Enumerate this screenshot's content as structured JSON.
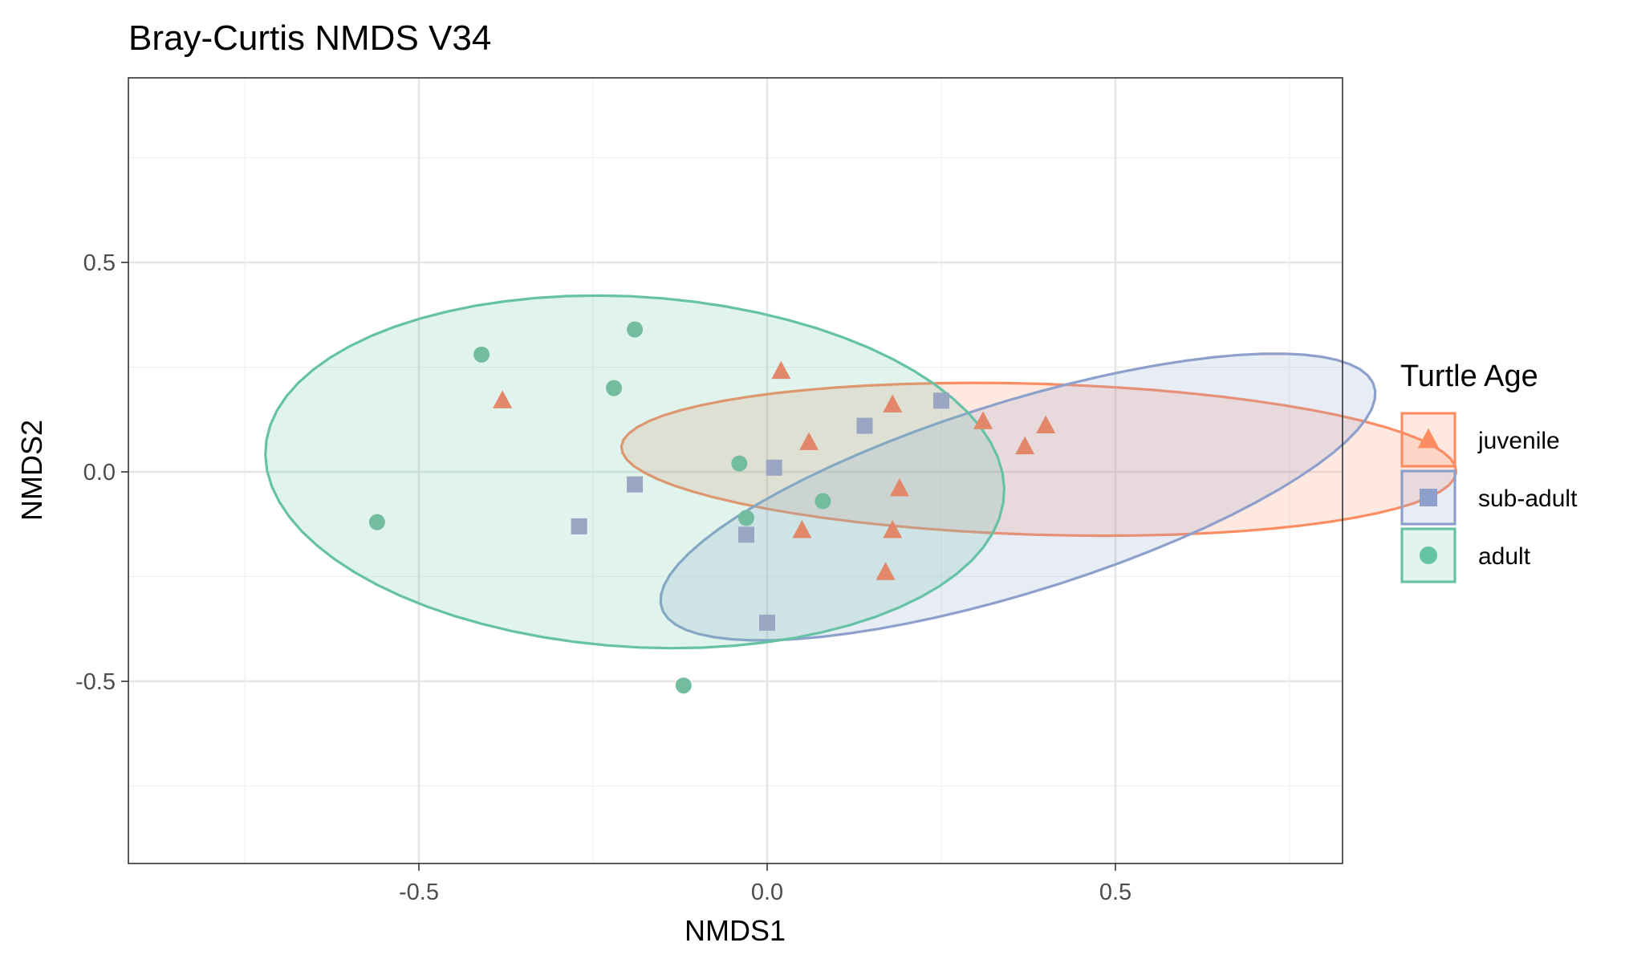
{
  "chart_data": {
    "type": "scatter",
    "title": "Bray-Curtis NMDS V34",
    "xlabel": "NMDS1",
    "ylabel": "NMDS2",
    "xlim": [
      -0.91,
      1.64
    ],
    "ylim": [
      -0.93,
      0.94
    ],
    "x_ticks": [
      -0.5,
      0.0,
      0.5
    ],
    "x_tick_labels": [
      "-0.5",
      "0.0",
      "0.5"
    ],
    "y_ticks": [
      -0.5,
      0.0,
      0.5
    ],
    "y_tick_labels": [
      "-0.5",
      "0.0",
      "0.5"
    ],
    "grid": true,
    "legend": {
      "title": "Turtle Age",
      "position": "right",
      "entries": [
        {
          "label": "juvenile",
          "color": "#FC8D62",
          "shape": "triangle"
        },
        {
          "label": "sub-adult",
          "color": "#8DA0CB",
          "shape": "square"
        },
        {
          "label": "adult",
          "color": "#66C2A5",
          "shape": "circle"
        }
      ]
    },
    "series": [
      {
        "name": "juvenile",
        "color": "#FC8D62",
        "marker_color": "#E2876A",
        "shape": "triangle",
        "points": [
          {
            "x": -0.38,
            "y": 0.17
          },
          {
            "x": 0.02,
            "y": 0.24
          },
          {
            "x": 0.06,
            "y": 0.07
          },
          {
            "x": 0.18,
            "y": 0.16
          },
          {
            "x": 0.31,
            "y": 0.12
          },
          {
            "x": 0.4,
            "y": 0.11
          },
          {
            "x": 0.37,
            "y": 0.06
          },
          {
            "x": 0.19,
            "y": -0.04
          },
          {
            "x": 0.05,
            "y": -0.14
          },
          {
            "x": 0.18,
            "y": -0.14
          },
          {
            "x": 0.17,
            "y": -0.24
          }
        ],
        "ellipse": {
          "cx": 0.39,
          "cy": 0.03,
          "rx": 1.2,
          "ry": 0.36,
          "angle_deg": -3
        }
      },
      {
        "name": "sub-adult",
        "color": "#8DA0CB",
        "marker_color": "#9AA5C4",
        "shape": "square",
        "points": [
          {
            "x": -0.27,
            "y": -0.13
          },
          {
            "x": -0.19,
            "y": -0.03
          },
          {
            "x": 0.01,
            "y": 0.01
          },
          {
            "x": -0.03,
            "y": -0.15
          },
          {
            "x": 0.14,
            "y": 0.11
          },
          {
            "x": 0.25,
            "y": 0.17
          },
          {
            "x": 0.0,
            "y": -0.36
          }
        ],
        "ellipse": {
          "cx": 0.36,
          "cy": -0.06,
          "rx": 1.16,
          "ry": 0.42,
          "angle_deg": 30
        }
      },
      {
        "name": "adult",
        "color": "#66C2A5",
        "marker_color": "#73BC9F",
        "shape": "circle",
        "points": [
          {
            "x": -0.41,
            "y": 0.28
          },
          {
            "x": -0.19,
            "y": 0.34
          },
          {
            "x": -0.22,
            "y": 0.2
          },
          {
            "x": -0.04,
            "y": 0.02
          },
          {
            "x": 0.08,
            "y": -0.07
          },
          {
            "x": -0.03,
            "y": -0.11
          },
          {
            "x": -0.56,
            "y": -0.12
          },
          {
            "x": -0.12,
            "y": -0.51
          }
        ],
        "ellipse": {
          "cx": -0.19,
          "cy": 0.0,
          "rx": 1.07,
          "ry": 0.83,
          "angle_deg": -12
        }
      }
    ]
  }
}
